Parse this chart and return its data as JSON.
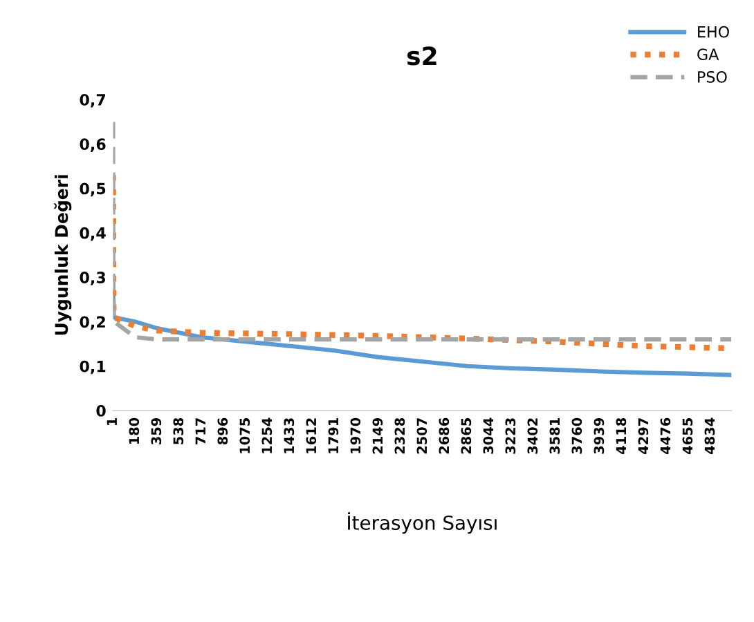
{
  "chart_data": {
    "type": "line",
    "title": "s2",
    "xlabel": "İterasyon Sayısı",
    "ylabel": "Uygunluk Değeri",
    "xlim": [
      1,
      5000
    ],
    "xticks": [
      1,
      180,
      359,
      538,
      717,
      896,
      1075,
      1254,
      1433,
      1612,
      1791,
      1970,
      2149,
      2328,
      2507,
      2686,
      2865,
      3044,
      3223,
      3402,
      3581,
      3760,
      3939,
      4118,
      4297,
      4476,
      4655,
      4834
    ],
    "ylim": [
      0,
      0.7
    ],
    "yticks": [
      0,
      {
        "value": 0.1,
        "label": "0,1"
      },
      {
        "value": 0.2,
        "label": "0,2"
      },
      {
        "value": 0.3,
        "label": "0,3"
      },
      {
        "value": 0.4,
        "label": "0,4"
      },
      {
        "value": 0.5,
        "label": "0,5"
      },
      {
        "value": 0.6,
        "label": "0,6"
      },
      {
        "value": 0.7,
        "label": "0,7"
      }
    ],
    "grid": false,
    "legend": "top right",
    "marker": "none",
    "series": [
      {
        "name": "EHO",
        "color": "#5b9bd5",
        "line_style": "solid",
        "x": [
          1,
          5,
          180,
          359,
          538,
          717,
          1075,
          1433,
          1791,
          2149,
          2507,
          2865,
          3223,
          3581,
          3939,
          4297,
          4655,
          5000
        ],
        "values": [
          0.27,
          0.21,
          0.2,
          0.185,
          0.175,
          0.165,
          0.155,
          0.145,
          0.135,
          0.12,
          0.11,
          0.1,
          0.095,
          0.092,
          0.088,
          0.085,
          0.083,
          0.08
        ]
      },
      {
        "name": "GA",
        "color": "#ed7d31",
        "line_style": "dotted",
        "x": [
          1,
          3,
          6,
          180,
          359,
          717,
          1433,
          2149,
          2865,
          3581,
          4297,
          5000
        ],
        "values": [
          0.53,
          0.35,
          0.21,
          0.19,
          0.18,
          0.175,
          0.172,
          0.168,
          0.162,
          0.155,
          0.145,
          0.14
        ]
      },
      {
        "name": "PSO",
        "color": "#a5a5a5",
        "line_style": "dashed",
        "x": [
          1,
          3,
          8,
          180,
          359,
          1000,
          5000
        ],
        "values": [
          0.65,
          0.3,
          0.2,
          0.165,
          0.16,
          0.16,
          0.16
        ]
      }
    ]
  }
}
